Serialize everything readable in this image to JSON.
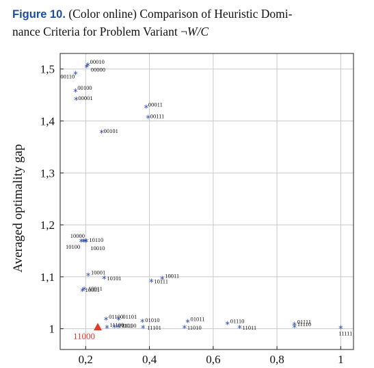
{
  "caption": {
    "figure_label": "Figure 10.",
    "text_line1": "(Color online) Comparison of Heuristic Domi-",
    "text_line2_prefix": "nance Criteria for Problem Variant ¬",
    "text_line2_math": "W/C"
  },
  "colors": {
    "star": "#2446a8",
    "highlight": "#e8382a",
    "grid": "#c8c8c8",
    "axis": "#222222"
  },
  "chart_data": {
    "type": "scatter",
    "xlabel": "",
    "ylabel": "Averaged optimality gap",
    "xlim": [
      0.12,
      1.04
    ],
    "ylim": [
      0.96,
      1.53
    ],
    "x_ticks": [
      0.2,
      0.4,
      0.6,
      0.8,
      1.0
    ],
    "x_tick_labels": [
      "0,2",
      "0,4",
      "0,6",
      "0,8",
      "1"
    ],
    "y_ticks": [
      1.0,
      1.1,
      1.2,
      1.3,
      1.4,
      1.5
    ],
    "y_tick_labels": [
      "1",
      "1,1",
      "1,2",
      "1,3",
      "1,4",
      "1,5"
    ],
    "grid": true,
    "marker": "*",
    "points": [
      {
        "label": "00010",
        "x": 0.207,
        "y": 1.506
      },
      {
        "label": "00000",
        "x": 0.203,
        "y": 1.503
      },
      {
        "label": "00110",
        "x": 0.168,
        "y": 1.49
      },
      {
        "label": "00100",
        "x": 0.168,
        "y": 1.456
      },
      {
        "label": "00001",
        "x": 0.17,
        "y": 1.44
      },
      {
        "label": "00011",
        "x": 0.39,
        "y": 1.425
      },
      {
        "label": "00111",
        "x": 0.396,
        "y": 1.405
      },
      {
        "label": "00101",
        "x": 0.25,
        "y": 1.377
      },
      {
        "label": "10110",
        "x": 0.198,
        "y": 1.167
      },
      {
        "label": "10000",
        "x": 0.186,
        "y": 1.167
      },
      {
        "label": "10100",
        "x": 0.193,
        "y": 1.167
      },
      {
        "label": "10010",
        "x": 0.202,
        "y": 1.167
      },
      {
        "label": "10001",
        "x": 0.208,
        "y": 1.102
      },
      {
        "label": "10101",
        "x": 0.258,
        "y": 1.096
      },
      {
        "label": "10111",
        "x": 0.406,
        "y": 1.09
      },
      {
        "label": "10011",
        "x": 0.44,
        "y": 1.095
      },
      {
        "label": "10001",
        "x": 0.19,
        "y": 1.072
      },
      {
        "label": "10011",
        "x": 0.195,
        "y": 1.075
      },
      {
        "label": "01100",
        "x": 0.264,
        "y": 1.017
      },
      {
        "label": "01101",
        "x": 0.303,
        "y": 1.017
      },
      {
        "label": "11100",
        "x": 0.267,
        "y": 1.001
      },
      {
        "label": "11101",
        "x": 0.29,
        "y": 1.002
      },
      {
        "label": "11100",
        "x": 0.302,
        "y": 1.002
      },
      {
        "label": "01010",
        "x": 0.378,
        "y": 1.013
      },
      {
        "label": "11101",
        "x": 0.38,
        "y": 1.001
      },
      {
        "label": "01011",
        "x": 0.52,
        "y": 1.012
      },
      {
        "label": "11010",
        "x": 0.51,
        "y": 1.001
      },
      {
        "label": "01110",
        "x": 0.645,
        "y": 1.008
      },
      {
        "label": "11011",
        "x": 0.683,
        "y": 1.001
      },
      {
        "label": "01111",
        "x": 0.855,
        "y": 1.007
      },
      {
        "label": "11110",
        "x": 0.855,
        "y": 1.002
      },
      {
        "label": "11111",
        "x": 1.0,
        "y": 1.0
      }
    ],
    "highlight": {
      "label": "11000",
      "x": 0.238,
      "y": 1.002,
      "marker": "triangle"
    }
  }
}
